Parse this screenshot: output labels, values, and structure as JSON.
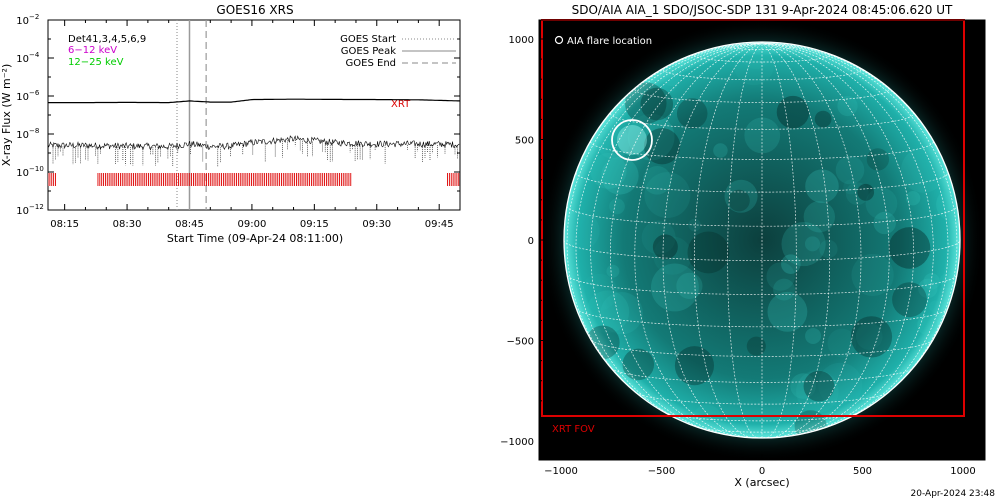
{
  "goes_panel": {
    "title": "GOES16 XRS",
    "ylabel": "X-ray Flux (W m⁻²)",
    "xlabel": "Start Time (09-Apr-24 08:11:00)",
    "band_labels": [
      {
        "text": "Det41,3,4,5,6,9",
        "color": "#000000"
      },
      {
        "text": "6−12 keV",
        "color": "#cc00cc"
      },
      {
        "text": "12−25 keV",
        "color": "#00cc00"
      }
    ],
    "legend": {
      "start_label": "GOES Start",
      "peak_label": "GOES Peak",
      "end_label": "GOES End"
    },
    "xrt_label": "XRT",
    "y_ticks": [
      {
        "exp": "−2",
        "value": -2
      },
      {
        "exp": "−4",
        "value": -4
      },
      {
        "exp": "−6",
        "value": -6
      },
      {
        "exp": "−8",
        "value": -8
      },
      {
        "exp": "−10",
        "value": -10
      },
      {
        "exp": "−12",
        "value": -12
      }
    ],
    "y_base": "10",
    "x_ticks": [
      "08:15",
      "08:30",
      "08:45",
      "09:00",
      "09:15",
      "09:30",
      "09:45"
    ]
  },
  "aia_panel": {
    "title": "SDO/AIA AIA_1 SDO/JSOC-SDP 131  9-Apr-2024 08:45:06.620 UT",
    "legend_label": "AIA flare location",
    "xrt_fov_label": "XRT FOV",
    "xlabel": "X (arcsec)",
    "x_ticks": [
      "−1000",
      "−500",
      "0",
      "500",
      "1000"
    ],
    "y_ticks": [
      "1000",
      "500",
      "0",
      "−500",
      "−1000"
    ]
  },
  "footer_timestamp": "20-Apr-2024 23:48",
  "colors": {
    "disk": "#1fa3a0",
    "limb": "#4fe0d8",
    "xrt": "#dd0000",
    "grid": "#ffffff"
  },
  "chart_data": [
    {
      "type": "line",
      "title": "GOES16 XRS",
      "xlabel": "Start Time (09-Apr-24 08:11:00)",
      "ylabel": "X-ray Flux (W m⁻²)",
      "y_scale": "log",
      "ylim": [
        1e-12,
        0.01
      ],
      "xlim": [
        "08:11",
        "09:50"
      ],
      "series": [
        {
          "name": "Det41,3,4,5,6,9",
          "color": "#000000",
          "x": [
            "08:11",
            "08:20",
            "08:30",
            "08:40",
            "08:45",
            "08:50",
            "08:55",
            "09:00",
            "09:10",
            "09:20",
            "09:30",
            "09:40",
            "09:50"
          ],
          "y": [
            4.5e-07,
            4.5e-07,
            4.6e-07,
            4.5e-07,
            5.5e-07,
            4.8e-07,
            4.8e-07,
            6.5e-07,
            6.8e-07,
            6.6e-07,
            6.5e-07,
            6.3e-07,
            5.5e-07
          ]
        },
        {
          "name": "6−12 keV",
          "x": [
            "08:11",
            "08:20",
            "08:30",
            "08:40",
            "08:45",
            "08:50",
            "08:55",
            "09:00",
            "09:10",
            "09:20",
            "09:30",
            "09:40",
            "09:50"
          ],
          "y": [
            2.5e-09,
            2.5e-09,
            2.3e-09,
            2.2e-09,
            3e-09,
            2.2e-09,
            2.3e-09,
            3.5e-09,
            5.5e-09,
            3.5e-09,
            3e-09,
            3e-09,
            2.8e-09
          ]
        }
      ],
      "vertical_markers": [
        {
          "label": "GOES Start",
          "time": "08:42",
          "style": "dotted"
        },
        {
          "label": "GOES Peak",
          "time": "08:45",
          "style": "solid"
        },
        {
          "label": "GOES End",
          "time": "08:49",
          "style": "dashed"
        }
      ],
      "xrt_observation_intervals": [
        [
          "08:11",
          "08:13"
        ],
        [
          "08:23",
          "09:24"
        ],
        [
          "09:47",
          "09:50"
        ]
      ],
      "legend_position": "top-right",
      "grid": false
    },
    {
      "type": "image",
      "title": "SDO/AIA AIA_1 SDO/JSOC-SDP 131  9-Apr-2024 08:45:06.620 UT",
      "xlabel": "X (arcsec)",
      "xlim": [
        -1100,
        1100
      ],
      "ylim": [
        -1100,
        1100
      ],
      "flare_location_arcsec": {
        "x": -630,
        "y": 490
      },
      "xrt_fov_arcsec": {
        "x": [
          -1090,
          1010
        ],
        "y": [
          -880,
          1110
        ]
      },
      "grid": true
    }
  ]
}
